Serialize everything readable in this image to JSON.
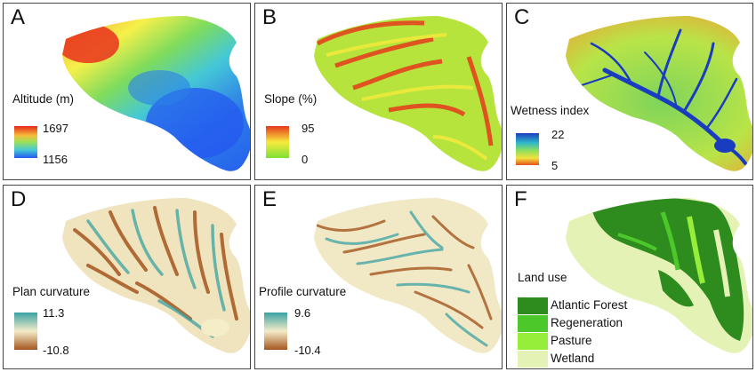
{
  "panels": {
    "A": {
      "label": "A",
      "legend_title": "Altitude (m)",
      "max": "1697",
      "min": "1156"
    },
    "B": {
      "label": "B",
      "legend_title": "Slope (%)",
      "max": "95",
      "min": "0"
    },
    "C": {
      "label": "C",
      "legend_title": "Wetness index",
      "max": "22",
      "min": "5"
    },
    "D": {
      "label": "D",
      "legend_title": "Plan curvature",
      "max": "11.3",
      "min": "-10.8"
    },
    "E": {
      "label": "E",
      "legend_title": "Profile curvature",
      "max": "9.6",
      "min": "-10.4"
    },
    "F": {
      "label": "F",
      "legend_title": "Land use",
      "classes": [
        {
          "name": "Atlantic Forest",
          "color": "#2e8b1e"
        },
        {
          "name": "Regeneration",
          "color": "#4cc82a"
        },
        {
          "name": "Pasture",
          "color": "#96ee3a"
        },
        {
          "name": "Wetland",
          "color": "#e4f2b6"
        }
      ]
    }
  },
  "colors": {
    "altitude_ramp": [
      "#e8271a",
      "#f4b23a",
      "#f5f04a",
      "#7fdc5c",
      "#45c8d6",
      "#2c7ee8",
      "#2458f0"
    ],
    "slope_ramp": [
      "#e63a1c",
      "#f7ea3c",
      "#7fe035"
    ],
    "wetness_ramp": [
      "#1a3dbf",
      "#2fb7c8",
      "#8fe05a",
      "#f2e23e",
      "#e64f1c"
    ],
    "curvature_ramp": [
      "#3aa3a3",
      "#f5ecc8",
      "#a4551f"
    ]
  }
}
